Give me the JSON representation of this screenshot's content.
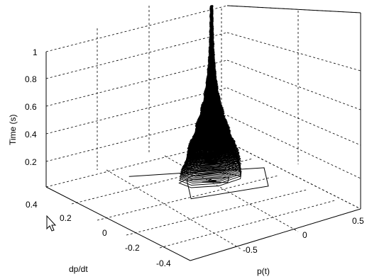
{
  "chart_data": {
    "type": "line3d",
    "title": "",
    "xlabel": "p(t)",
    "ylabel": "dp/dt",
    "zlabel": "Time (s)",
    "xlim": [
      -0.8,
      0.6
    ],
    "ylim": [
      -0.4,
      0.4
    ],
    "zlim": [
      0,
      1
    ],
    "x_ticks": [
      "-0.5",
      "0",
      "0.5"
    ],
    "y_ticks": [
      "-0.4",
      "-0.2",
      "0",
      "0.2",
      "0.4"
    ],
    "z_ticks": [
      "0.2",
      "0.4",
      "0.6",
      "0.8",
      "1"
    ],
    "grid": true,
    "series": [
      {
        "description_values": "spiral trajectory converging toward p(t)=0, dp/dt=0 as time increases from 0 to 1",
        "x": [
          -0.35,
          0.45,
          0.25,
          -0.3,
          -0.1,
          0.15,
          0.08,
          -0.05,
          0.03,
          -0.02,
          0.0
        ],
        "y": [
          0.38,
          0.05,
          -0.25,
          -0.18,
          0.12,
          0.02,
          -0.06,
          0.03,
          -0.01,
          0.01,
          0.0
        ],
        "z": [
          0.0,
          0.01,
          0.02,
          0.03,
          0.05,
          0.08,
          0.12,
          0.2,
          0.4,
          0.7,
          1.0
        ]
      }
    ]
  },
  "labels": {
    "zlabel": "Time (s)",
    "ylabel": "dp/dt",
    "xlabel": "p(t)"
  }
}
